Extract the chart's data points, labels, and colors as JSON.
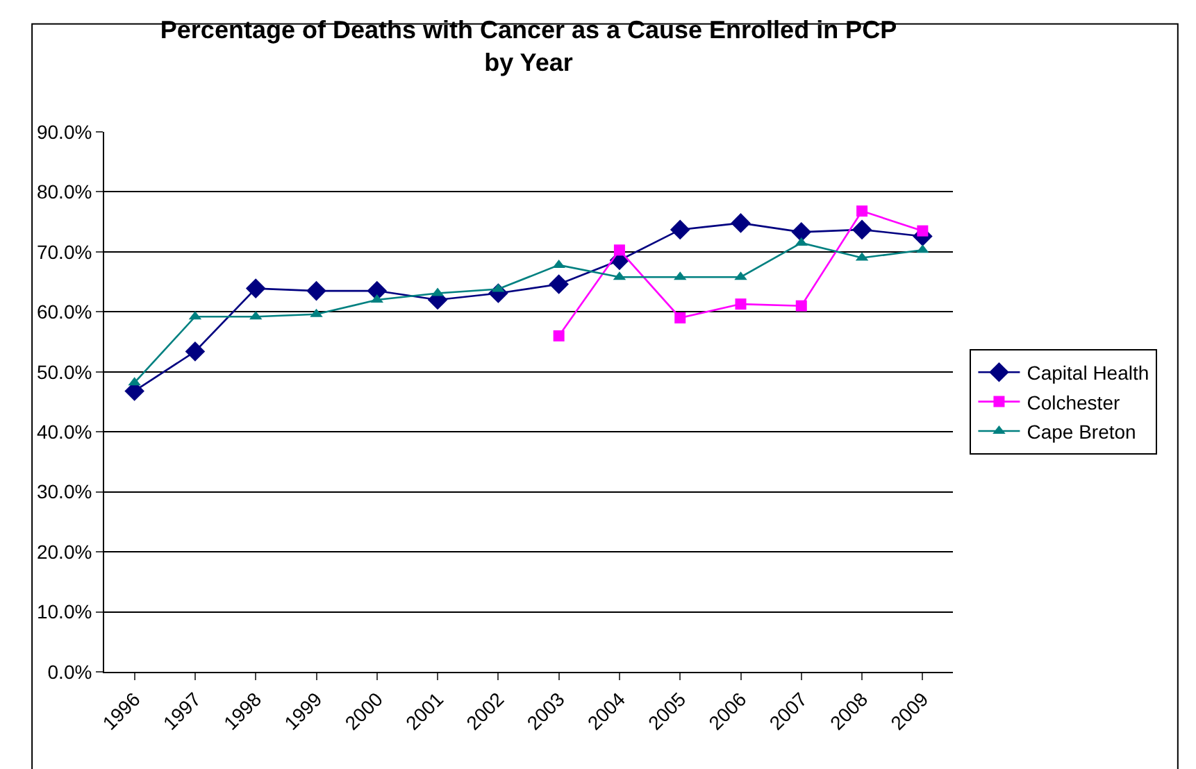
{
  "chart_data": {
    "type": "line",
    "title": "Percentage of Deaths with Cancer as a Cause Enrolled in PCP\nby Year",
    "categories": [
      "1996",
      "1997",
      "1998",
      "1999",
      "2000",
      "2001",
      "2002",
      "2003",
      "2004",
      "2005",
      "2006",
      "2007",
      "2008",
      "2009"
    ],
    "series": [
      {
        "name": "Capital Health",
        "color": "#000080",
        "marker": "diamond",
        "values": [
          46.8,
          53.4,
          63.9,
          63.5,
          63.5,
          62.0,
          63.1,
          64.6,
          68.6,
          73.7,
          74.8,
          73.3,
          73.7,
          72.6
        ]
      },
      {
        "name": "Colchester",
        "color": "#ff00ff",
        "marker": "square",
        "values": [
          null,
          null,
          null,
          null,
          null,
          null,
          null,
          56.0,
          70.3,
          59.0,
          61.3,
          61.0,
          76.8,
          73.5
        ]
      },
      {
        "name": "Cape Breton",
        "color": "#008080",
        "marker": "triangle",
        "values": [
          48.2,
          59.2,
          59.2,
          59.6,
          62.0,
          63.1,
          63.8,
          67.8,
          65.8,
          65.8,
          65.8,
          71.5,
          69.0,
          70.3
        ]
      }
    ],
    "ylim": [
      0,
      90
    ],
    "yticks": [
      {
        "value": 0,
        "label": "0.0%"
      },
      {
        "value": 10,
        "label": "10.0%"
      },
      {
        "value": 20,
        "label": "20.0%"
      },
      {
        "value": 30,
        "label": "30.0%"
      },
      {
        "value": 40,
        "label": "40.0%"
      },
      {
        "value": 50,
        "label": "50.0%"
      },
      {
        "value": 60,
        "label": "60.0%"
      },
      {
        "value": 70,
        "label": "70.0%"
      },
      {
        "value": 80,
        "label": "80.0%"
      },
      {
        "value": 90,
        "label": "90.0%"
      }
    ],
    "grid": "y",
    "legend": "right",
    "line_style": "solid"
  }
}
